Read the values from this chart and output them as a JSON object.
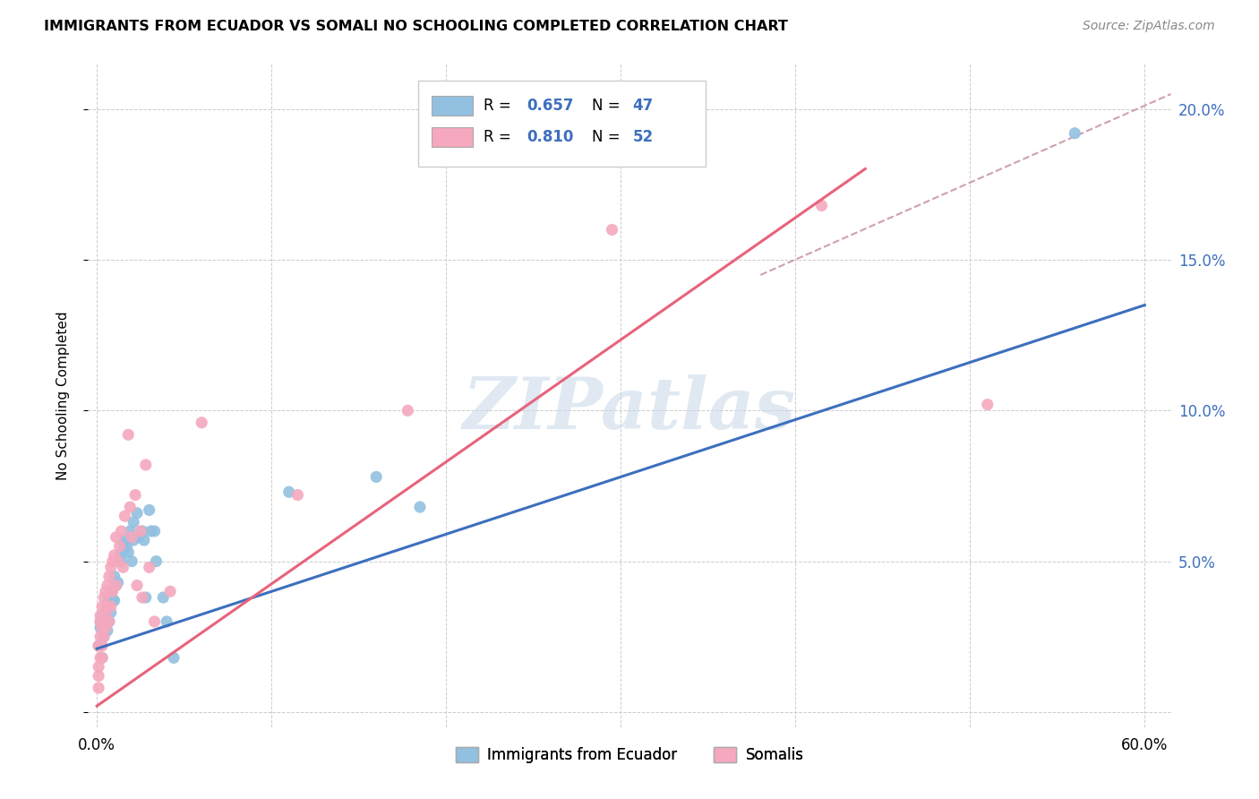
{
  "title": "IMMIGRANTS FROM ECUADOR VS SOMALI NO SCHOOLING COMPLETED CORRELATION CHART",
  "source": "Source: ZipAtlas.com",
  "ylabel": "No Schooling Completed",
  "xlim": [
    -0.005,
    0.615
  ],
  "ylim": [
    -0.005,
    0.215
  ],
  "yticks": [
    0.0,
    0.05,
    0.1,
    0.15,
    0.2
  ],
  "ytick_labels": [
    "",
    "5.0%",
    "10.0%",
    "15.0%",
    "20.0%"
  ],
  "xtick_vals": [
    0.0,
    0.1,
    0.2,
    0.3,
    0.4,
    0.5,
    0.6
  ],
  "xtick_labels": [
    "0.0%",
    "",
    "",
    "",
    "",
    "",
    "60.0%"
  ],
  "ecuador_color": "#92c0e0",
  "somali_color": "#f5a8be",
  "ecuador_line_color": "#3d6fbe",
  "somali_line_color": "#e8637a",
  "dashed_line_color": "#d0a0b0",
  "R_ecuador": 0.657,
  "N_ecuador": 47,
  "R_somali": 0.81,
  "N_somali": 52,
  "legend_label_ecuador": "Immigrants from Ecuador",
  "legend_label_somali": "Somalis",
  "watermark": "ZIPatlas",
  "ecuador_line": [
    0.0,
    0.021,
    0.6,
    0.135
  ],
  "somali_line": [
    0.0,
    0.002,
    0.6,
    0.245
  ],
  "dashed_line": [
    0.38,
    0.145,
    0.615,
    0.205
  ],
  "ecuador_points": [
    [
      0.001,
      0.022
    ],
    [
      0.002,
      0.028
    ],
    [
      0.002,
      0.03
    ],
    [
      0.003,
      0.018
    ],
    [
      0.003,
      0.032
    ],
    [
      0.004,
      0.028
    ],
    [
      0.004,
      0.025
    ],
    [
      0.005,
      0.033
    ],
    [
      0.005,
      0.03
    ],
    [
      0.006,
      0.036
    ],
    [
      0.006,
      0.027
    ],
    [
      0.007,
      0.038
    ],
    [
      0.007,
      0.03
    ],
    [
      0.008,
      0.04
    ],
    [
      0.008,
      0.033
    ],
    [
      0.009,
      0.037
    ],
    [
      0.01,
      0.045
    ],
    [
      0.01,
      0.037
    ],
    [
      0.011,
      0.042
    ],
    [
      0.012,
      0.043
    ],
    [
      0.013,
      0.052
    ],
    [
      0.014,
      0.05
    ],
    [
      0.015,
      0.056
    ],
    [
      0.015,
      0.053
    ],
    [
      0.016,
      0.057
    ],
    [
      0.017,
      0.055
    ],
    [
      0.018,
      0.053
    ],
    [
      0.019,
      0.06
    ],
    [
      0.02,
      0.05
    ],
    [
      0.021,
      0.063
    ],
    [
      0.021,
      0.057
    ],
    [
      0.023,
      0.066
    ],
    [
      0.024,
      0.058
    ],
    [
      0.026,
      0.06
    ],
    [
      0.027,
      0.057
    ],
    [
      0.028,
      0.038
    ],
    [
      0.03,
      0.067
    ],
    [
      0.031,
      0.06
    ],
    [
      0.033,
      0.06
    ],
    [
      0.034,
      0.05
    ],
    [
      0.038,
      0.038
    ],
    [
      0.04,
      0.03
    ],
    [
      0.044,
      0.018
    ],
    [
      0.11,
      0.073
    ],
    [
      0.16,
      0.078
    ],
    [
      0.185,
      0.068
    ],
    [
      0.56,
      0.192
    ]
  ],
  "somali_points": [
    [
      0.001,
      0.015
    ],
    [
      0.001,
      0.022
    ],
    [
      0.001,
      0.012
    ],
    [
      0.001,
      0.008
    ],
    [
      0.002,
      0.025
    ],
    [
      0.002,
      0.018
    ],
    [
      0.002,
      0.03
    ],
    [
      0.002,
      0.022
    ],
    [
      0.002,
      0.032
    ],
    [
      0.003,
      0.028
    ],
    [
      0.003,
      0.022
    ],
    [
      0.003,
      0.035
    ],
    [
      0.003,
      0.018
    ],
    [
      0.004,
      0.03
    ],
    [
      0.004,
      0.038
    ],
    [
      0.004,
      0.025
    ],
    [
      0.005,
      0.04
    ],
    [
      0.005,
      0.032
    ],
    [
      0.005,
      0.028
    ],
    [
      0.006,
      0.042
    ],
    [
      0.006,
      0.035
    ],
    [
      0.007,
      0.045
    ],
    [
      0.007,
      0.03
    ],
    [
      0.008,
      0.048
    ],
    [
      0.008,
      0.035
    ],
    [
      0.009,
      0.05
    ],
    [
      0.009,
      0.04
    ],
    [
      0.01,
      0.052
    ],
    [
      0.011,
      0.042
    ],
    [
      0.011,
      0.058
    ],
    [
      0.012,
      0.05
    ],
    [
      0.013,
      0.055
    ],
    [
      0.014,
      0.06
    ],
    [
      0.015,
      0.048
    ],
    [
      0.016,
      0.065
    ],
    [
      0.018,
      0.092
    ],
    [
      0.019,
      0.068
    ],
    [
      0.02,
      0.058
    ],
    [
      0.022,
      0.072
    ],
    [
      0.023,
      0.042
    ],
    [
      0.025,
      0.06
    ],
    [
      0.026,
      0.038
    ],
    [
      0.028,
      0.082
    ],
    [
      0.03,
      0.048
    ],
    [
      0.033,
      0.03
    ],
    [
      0.042,
      0.04
    ],
    [
      0.06,
      0.096
    ],
    [
      0.115,
      0.072
    ],
    [
      0.178,
      0.1
    ],
    [
      0.295,
      0.16
    ],
    [
      0.415,
      0.168
    ],
    [
      0.51,
      0.102
    ]
  ]
}
